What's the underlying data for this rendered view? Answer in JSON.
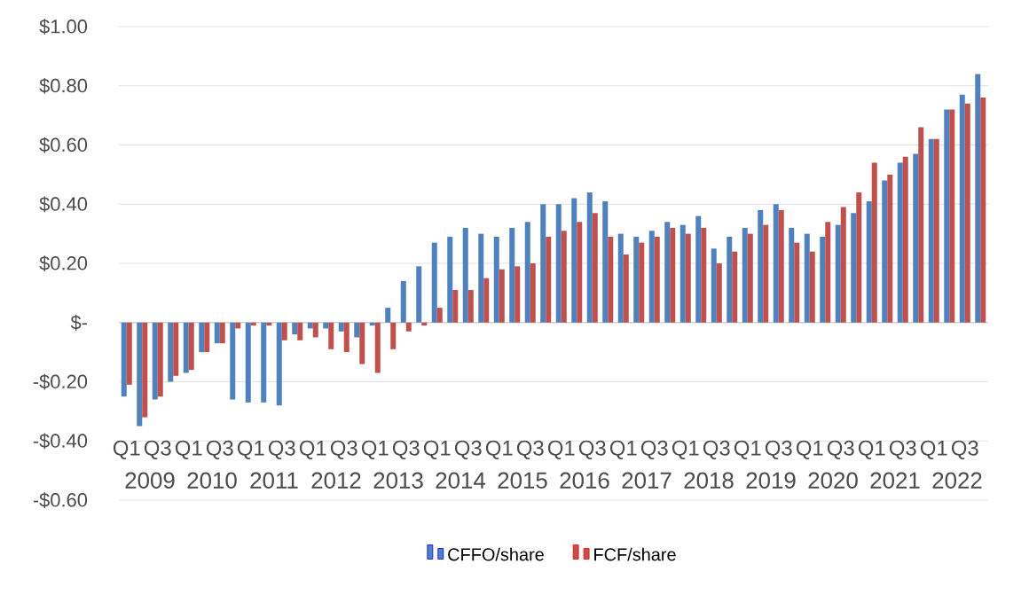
{
  "chart_data": {
    "type": "bar",
    "categories": [
      "Q1",
      null,
      "Q3",
      null,
      "Q1",
      null,
      "Q3",
      null,
      "Q1",
      null,
      "Q3",
      null,
      "Q1",
      null,
      "Q3",
      null,
      "Q1",
      null,
      "Q3",
      null,
      "Q1",
      null,
      "Q3",
      null,
      "Q1",
      null,
      "Q3",
      null,
      "Q1",
      null,
      "Q3",
      null,
      "Q1",
      null,
      "Q3",
      null,
      "Q1",
      null,
      "Q3",
      null,
      "Q1",
      null,
      "Q3",
      null,
      "Q1",
      null,
      "Q3",
      null,
      "Q1",
      null,
      "Q3",
      null,
      "Q1",
      null,
      "Q3",
      null
    ],
    "series": [
      {
        "name": "CFFO/share",
        "color": "#4f81bd",
        "values": [
          -0.25,
          -0.35,
          -0.26,
          -0.2,
          -0.17,
          -0.1,
          -0.07,
          -0.26,
          -0.27,
          -0.27,
          -0.28,
          -0.04,
          -0.02,
          -0.02,
          -0.03,
          -0.05,
          -0.01,
          0.05,
          0.14,
          0.19,
          0.27,
          0.29,
          0.32,
          0.3,
          0.29,
          0.32,
          0.34,
          0.4,
          0.4,
          0.42,
          0.44,
          0.41,
          0.3,
          0.29,
          0.31,
          0.34,
          0.33,
          0.36,
          0.25,
          0.29,
          0.32,
          0.38,
          0.4,
          0.32,
          0.3,
          0.29,
          0.33,
          0.37,
          0.41,
          0.48,
          0.54,
          0.57,
          0.62,
          0.72,
          0.77,
          0.84
        ]
      },
      {
        "name": "FCF/share",
        "color": "#c0504d",
        "values": [
          -0.21,
          -0.32,
          -0.25,
          -0.18,
          -0.16,
          -0.1,
          -0.07,
          -0.02,
          -0.01,
          -0.01,
          -0.06,
          -0.06,
          -0.05,
          -0.09,
          -0.1,
          -0.14,
          -0.17,
          -0.09,
          -0.03,
          -0.01,
          0.05,
          0.11,
          0.11,
          0.15,
          0.18,
          0.19,
          0.2,
          0.29,
          0.31,
          0.34,
          0.37,
          0.29,
          0.23,
          0.27,
          0.29,
          0.32,
          0.3,
          0.32,
          0.2,
          0.24,
          0.3,
          0.33,
          0.38,
          0.27,
          0.24,
          0.34,
          0.39,
          0.44,
          0.54,
          0.5,
          0.56,
          0.66,
          0.62,
          0.72,
          0.74,
          0.76
        ]
      }
    ],
    "annotations": [
      "2009",
      "2010",
      "2011",
      "2012",
      "2013",
      "2014",
      "2015",
      "2016",
      "2017",
      "2018",
      "2019",
      "2020",
      "2021",
      "2022"
    ],
    "ylim": [
      -0.6,
      1.0
    ],
    "yticks": [
      {
        "value": -0.6,
        "label": "-$0.60"
      },
      {
        "value": -0.4,
        "label": "-$0.40"
      },
      {
        "value": -0.2,
        "label": "-$0.20"
      },
      {
        "value": 0,
        "label": "$-"
      },
      {
        "value": 0.2,
        "label": "$0.20"
      },
      {
        "value": 0.4,
        "label": "$0.40"
      },
      {
        "value": 0.6,
        "label": "$0.60"
      },
      {
        "value": 0.8,
        "label": "$0.80"
      },
      {
        "value": 1.0,
        "label": "$1.00"
      }
    ],
    "grid": "y",
    "legend": "bottom"
  }
}
